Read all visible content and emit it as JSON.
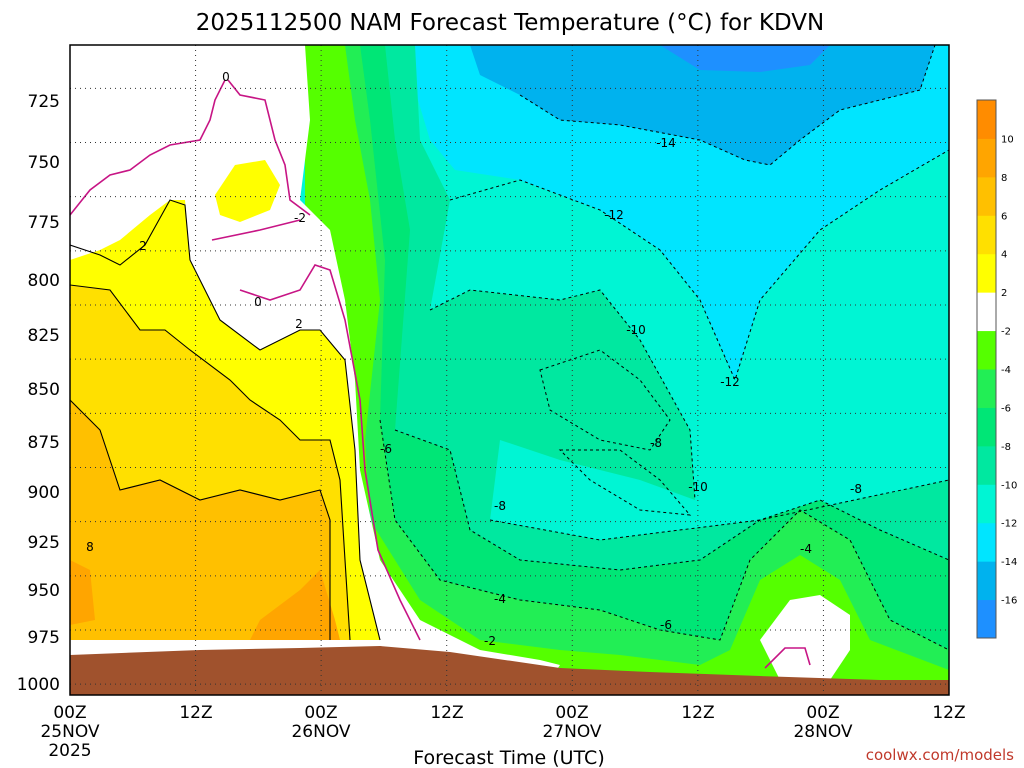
{
  "chart_data": {
    "type": "heatmap",
    "title": "2025112500 NAM Forecast Temperature (°C) for KDVN",
    "xlabel": "Forecast Time (UTC)",
    "ylabel": "",
    "x_range_hours": [
      0,
      84
    ],
    "y_range_hpa": [
      705,
      1005
    ],
    "y_ticks": [
      "725",
      "750",
      "775",
      "800",
      "825",
      "850",
      "875",
      "900",
      "925",
      "950",
      "975",
      "1000"
    ],
    "x_ticks": [
      {
        "top": "00Z",
        "mid": "25NOV",
        "bottom": "2025"
      },
      {
        "top": "12Z",
        "mid": "",
        "bottom": ""
      },
      {
        "top": "00Z",
        "mid": "26NOV",
        "bottom": ""
      },
      {
        "top": "12Z",
        "mid": "",
        "bottom": ""
      },
      {
        "top": "00Z",
        "mid": "27NOV",
        "bottom": ""
      },
      {
        "top": "12Z",
        "mid": "",
        "bottom": ""
      },
      {
        "top": "00Z",
        "mid": "28NOV",
        "bottom": ""
      },
      {
        "top": "12Z",
        "mid": "",
        "bottom": ""
      }
    ],
    "colorbar": {
      "levels": [
        -18,
        -16,
        -14,
        -12,
        -10,
        -8,
        -6,
        -4,
        -2,
        2,
        4,
        6,
        8,
        10,
        12
      ],
      "labels": [
        "-16",
        "-14",
        "-12",
        "-10",
        "-8",
        "-6",
        "-4",
        "-2",
        "2",
        "4",
        "6",
        "8",
        "10"
      ],
      "colors": [
        "#1e90ff",
        "#00b2ee",
        "#00e5ff",
        "#00f5d4",
        "#00e8a0",
        "#00e676",
        "#22ee55",
        "#55ff00",
        "#ffffff",
        "#ffff00",
        "#ffe000",
        "#ffc000",
        "#ffa500",
        "#ff8c00"
      ]
    },
    "contour_labels": [
      "0",
      "0",
      "-2",
      "2",
      "2",
      "8",
      "-6",
      "-8",
      "-4",
      "-2",
      "-14",
      "-12",
      "-10",
      "-12",
      "-8",
      "-10",
      "-6",
      "-4",
      "-8"
    ],
    "surface": "terrain shading near 980-1005 hPa"
  },
  "credit": "coolwx.com/models"
}
